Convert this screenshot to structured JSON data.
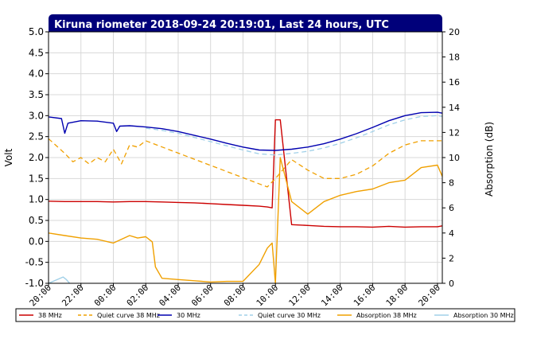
{
  "chart_data": {
    "type": "line",
    "title": "Kiruna riometer 2018-09-24 20:19:01, Last 24 hours, UTC",
    "ylabel_left": "Volt",
    "ylabel_right": "Absorption (dB)",
    "ylim_left": [
      -1.0,
      5.0
    ],
    "ylim_right": [
      0,
      20
    ],
    "yticks_left": [
      "5.0",
      "4.5",
      "4.0",
      "3.5",
      "3.0",
      "2.5",
      "2.0",
      "1.5",
      "1.0",
      "0.5",
      "0.0",
      "-0.5",
      "-1.0"
    ],
    "yticks_right": [
      "20",
      "18",
      "16",
      "14",
      "12",
      "10",
      "8",
      "6",
      "4",
      "2",
      "0"
    ],
    "xlim": [
      0,
      24.3
    ],
    "xtick_labels": [
      "20:00",
      "22:00",
      "00:00",
      "02:00",
      "04:00",
      "06:00",
      "08:00",
      "10:00",
      "12:00",
      "14:00",
      "16:00",
      "18:00",
      "20:00"
    ],
    "grid": true,
    "legend_position": "bottom",
    "series": [
      {
        "name": "38 MHz",
        "axis": "left",
        "color": "#cc0000",
        "style": "solid",
        "x": [
          0,
          1,
          2,
          3,
          4,
          5,
          6,
          7,
          8,
          9,
          10,
          11,
          12,
          13,
          13.5,
          13.8,
          14,
          14.3,
          15,
          16,
          17,
          18,
          19,
          20,
          21,
          22,
          23,
          24,
          24.3
        ],
        "y": [
          0.96,
          0.95,
          0.95,
          0.95,
          0.94,
          0.95,
          0.95,
          0.94,
          0.93,
          0.92,
          0.9,
          0.88,
          0.86,
          0.84,
          0.82,
          0.8,
          2.9,
          2.9,
          0.4,
          0.38,
          0.36,
          0.35,
          0.35,
          0.34,
          0.36,
          0.34,
          0.35,
          0.35,
          0.37
        ]
      },
      {
        "name": "Quiet curve 38 MHz",
        "axis": "left",
        "color": "#f0a000",
        "style": "dashed",
        "x": [
          0,
          1,
          1.5,
          2,
          2.5,
          3,
          3.5,
          4,
          4.5,
          5,
          5.5,
          6,
          13.5,
          14,
          15,
          16,
          17,
          18,
          19,
          20,
          21,
          22,
          23,
          24,
          24.3
        ],
        "y": [
          2.45,
          2.1,
          1.9,
          2.0,
          1.85,
          2.0,
          1.9,
          2.2,
          1.85,
          2.3,
          2.25,
          2.4,
          1.3,
          1.5,
          1.95,
          1.7,
          1.5,
          1.5,
          1.6,
          1.8,
          2.1,
          2.3,
          2.4,
          2.4,
          2.4
        ]
      },
      {
        "name": "30 MHz",
        "axis": "left",
        "color": "#0000b0",
        "style": "solid",
        "x": [
          0,
          0.8,
          1,
          1.2,
          2,
          3,
          4,
          4.2,
          4.4,
          5,
          6,
          7,
          8,
          9,
          10,
          11,
          12,
          13,
          14,
          15,
          16,
          17,
          18,
          19,
          20,
          21,
          22,
          23,
          24,
          24.3
        ],
        "y": [
          2.97,
          2.93,
          2.58,
          2.82,
          2.88,
          2.87,
          2.82,
          2.62,
          2.75,
          2.76,
          2.73,
          2.69,
          2.62,
          2.53,
          2.44,
          2.34,
          2.25,
          2.18,
          2.17,
          2.2,
          2.25,
          2.33,
          2.44,
          2.57,
          2.72,
          2.88,
          3.0,
          3.07,
          3.08,
          3.06
        ]
      },
      {
        "name": "Quiet curve 30 MHz",
        "axis": "left",
        "color": "#a0d0e8",
        "style": "dashed",
        "x": [
          6,
          7,
          8,
          9,
          10,
          11,
          12,
          13,
          14,
          15,
          16,
          17,
          18,
          19,
          20,
          21,
          22,
          23,
          24,
          24.3
        ],
        "y": [
          2.7,
          2.65,
          2.58,
          2.48,
          2.38,
          2.28,
          2.18,
          2.09,
          2.06,
          2.1,
          2.15,
          2.23,
          2.34,
          2.47,
          2.62,
          2.78,
          2.9,
          2.98,
          3.0,
          2.98
        ]
      },
      {
        "name": "Absorption 38 MHz",
        "axis": "right",
        "color": "#f0a000",
        "style": "solid",
        "x": [
          0,
          1,
          2,
          3,
          4,
          5,
          5.5,
          6,
          6.4,
          6.6,
          7,
          8,
          9,
          10,
          11,
          12,
          13,
          13.5,
          13.8,
          14,
          14.3,
          14.5,
          15,
          16,
          17,
          18,
          19,
          20,
          21,
          22,
          23,
          24,
          24.3
        ],
        "y": [
          4.0,
          3.8,
          3.6,
          3.5,
          3.2,
          3.8,
          3.6,
          3.7,
          3.3,
          1.3,
          0.4,
          0.3,
          0.2,
          0.1,
          0.15,
          0.15,
          1.5,
          2.8,
          3.2,
          0.0,
          10.0,
          9.0,
          6.5,
          5.5,
          6.5,
          7.0,
          7.3,
          7.5,
          8.0,
          8.2,
          9.2,
          9.4,
          8.5
        ]
      },
      {
        "name": "Absorption 30 MHz",
        "axis": "right",
        "color": "#a0d0e8",
        "style": "solid",
        "x": [
          0,
          0.9,
          1.1,
          1.3
        ],
        "y": [
          0.0,
          0.5,
          0.3,
          0.0
        ]
      }
    ]
  }
}
